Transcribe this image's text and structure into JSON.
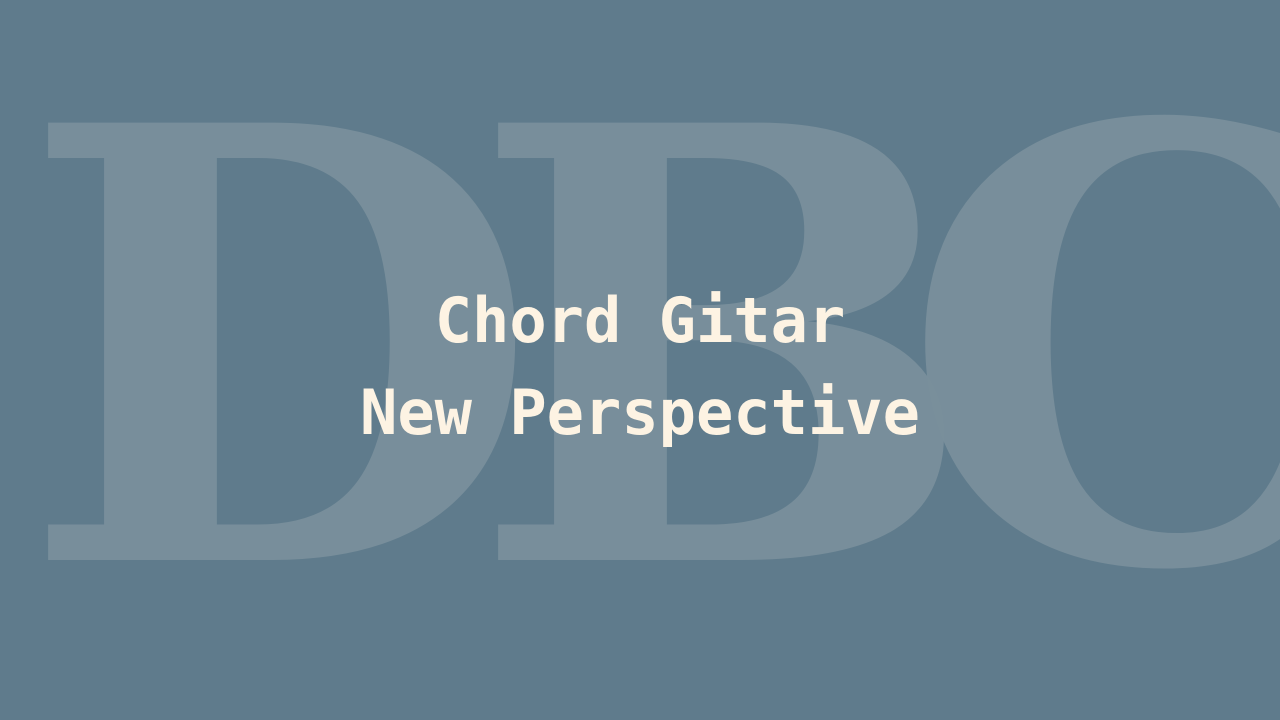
{
  "watermark": {
    "letters": [
      "D",
      "B",
      "C"
    ]
  },
  "title": {
    "line1": "Chord Gitar",
    "line2": "New Perspective"
  },
  "colors": {
    "background": "#5f7b8c",
    "watermark": "#7a909c",
    "title_text": "#fdf3e3"
  }
}
